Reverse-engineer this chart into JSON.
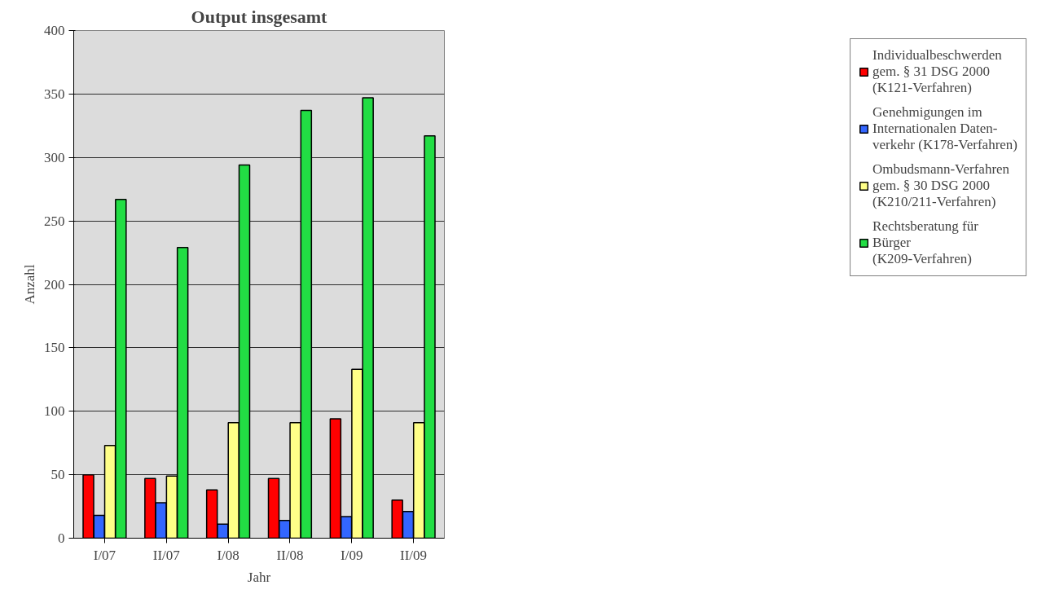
{
  "chart_data": {
    "type": "bar",
    "title": "Output insgesamt",
    "xlabel": "Jahr",
    "ylabel": "Anzahl",
    "categories": [
      "I/07",
      "II/07",
      "I/08",
      "II/08",
      "I/09",
      "II/09"
    ],
    "series": [
      {
        "name": "Individualbeschwerden\ngem. § 31 DSG 2000\n(K121-Verfahren)",
        "color": "#ff0000",
        "values": [
          50,
          47,
          38,
          47,
          94,
          30
        ]
      },
      {
        "name": "Genehmigungen im\nInternationalen Daten-\nverkehr (K178-Verfahren)",
        "color": "#3366ff",
        "values": [
          18,
          28,
          11,
          14,
          17,
          21
        ]
      },
      {
        "name": "Ombudsmann-Verfahren\ngem. § 30 DSG 2000\n(K210/211-Verfahren)",
        "color": "#ffff88",
        "values": [
          73,
          49,
          91,
          91,
          133,
          91
        ]
      },
      {
        "name": "Rechtsberatung für\nBürger\n(K209-Verfahren)",
        "color": "#22dd44",
        "values": [
          267,
          229,
          294,
          337,
          347,
          317
        ]
      }
    ],
    "ylim": [
      0,
      400
    ],
    "yticks": [
      0,
      50,
      100,
      150,
      200,
      250,
      300,
      350,
      400
    ],
    "grid": "y",
    "legend": "right"
  }
}
